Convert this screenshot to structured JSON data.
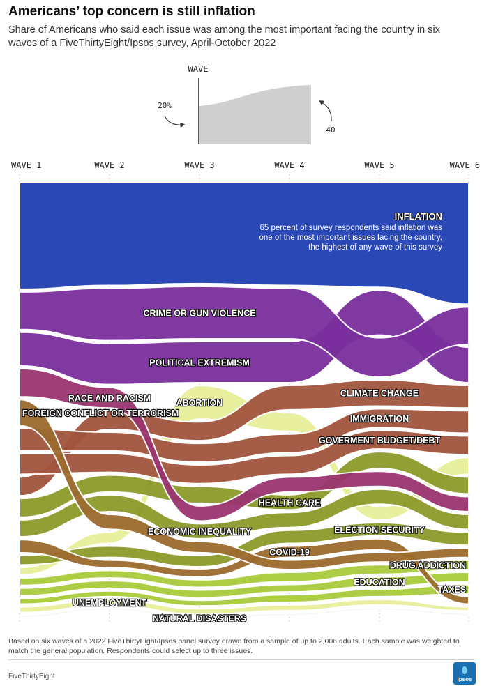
{
  "title": "Americans’ top concern is still inflation",
  "subtitle": "Share of Americans who said each issue was among the most important facing the country in six waves of a FiveThirtyEight/Ipsos survey, April-October 2022",
  "key": {
    "axis_label": "WAVE",
    "start_label": "20%",
    "end_label": "40"
  },
  "annotation": {
    "label": "INFLATION",
    "lines": [
      "65 percent of survey respondents said inflation was",
      "one of the most important issues facing the country,",
      "the highest of any wave of this survey"
    ]
  },
  "footnote": "Based on six waves of a 2022 FiveThirtyEight/Ipsos panel survey drawn from a sample of up to 2,006 adults. Each sample was weighted to match the general population. Respondents could select up to three issues.",
  "credit": "FiveThirtyEight",
  "logo_text": "Ipsos",
  "colors": {
    "inflation": "#1f3fb3",
    "purple": "#7b2f9e",
    "magenta": "#9a3470",
    "rust": "#a2553e",
    "brown": "#9c6b2e",
    "olive": "#8d9a2a",
    "lime": "#a9cc3a",
    "pale": "#e7ef9a"
  },
  "chart_data": {
    "type": "area",
    "subtype": "ranked bump/stream chart",
    "x": [
      "WAVE 1",
      "WAVE 2",
      "WAVE 3",
      "WAVE 4",
      "WAVE 5",
      "WAVE 6"
    ],
    "unit": "percent",
    "series": [
      {
        "name": "INFLATION",
        "color": "#1f3fb3",
        "values": [
          57,
          55,
          54,
          55,
          56,
          65
        ]
      },
      {
        "name": "CRIME OR GUN VIOLENCE",
        "color": "#7b2f9e",
        "values": [
          20,
          28,
          28,
          27,
          21,
          20
        ]
      },
      {
        "name": "POLITICAL EXTREMISM",
        "color": "#7b2f9e",
        "values": [
          18,
          22,
          22,
          22,
          24,
          19
        ]
      },
      {
        "name": "RACE AND RACISM",
        "color": "#9a3470",
        "values": [
          15,
          11,
          8,
          8,
          8,
          8
        ]
      },
      {
        "name": "FOREIGN CONFLICT OR TERRORISM",
        "color": "#9c6b2e",
        "values": [
          14,
          8,
          6,
          5,
          5,
          5
        ]
      },
      {
        "name": "ABORTION",
        "color": "#e7ef9a",
        "values": [
          4,
          6,
          18,
          10,
          7,
          9
        ]
      },
      {
        "name": "CLIMATE CHANGE",
        "color": "#a2553e",
        "values": [
          10,
          10,
          10,
          13,
          14,
          12
        ]
      },
      {
        "name": "IMMIGRATION",
        "color": "#a2553e",
        "values": [
          12,
          10,
          10,
          10,
          10,
          12
        ]
      },
      {
        "name": "GOVERMENT BUDGET/DEBT",
        "color": "#a2553e",
        "values": [
          11,
          10,
          10,
          10,
          10,
          10
        ]
      },
      {
        "name": "COVID-19",
        "color": "#9c6b2e",
        "values": [
          7,
          4,
          4,
          6,
          6,
          4
        ]
      },
      {
        "name": "HEALTH CARE",
        "color": "#8d9a2a",
        "values": [
          10,
          9,
          9,
          8,
          9,
          9
        ]
      },
      {
        "name": "ECONOMIC INEQUALITY",
        "color": "#8d9a2a",
        "values": [
          9,
          9,
          8,
          8,
          8,
          8
        ]
      },
      {
        "name": "ELECTION SECURITY",
        "color": "#8d9a2a",
        "values": [
          5,
          6,
          6,
          7,
          7,
          7
        ]
      },
      {
        "name": "DRUG ADDICTION",
        "color": "#a9cc3a",
        "values": [
          4,
          4,
          4,
          5,
          5,
          5
        ]
      },
      {
        "name": "EDUCATION",
        "color": "#a9cc3a",
        "values": [
          4,
          4,
          4,
          4,
          5,
          5
        ]
      },
      {
        "name": "TAXES",
        "color": "#a9cc3a",
        "values": [
          3,
          3,
          3,
          4,
          4,
          5
        ]
      },
      {
        "name": "UNEMPLOYMENT",
        "color": "#e7ef9a",
        "values": [
          3,
          3,
          3,
          3,
          3,
          2
        ]
      },
      {
        "name": "NATURAL DISASTERS",
        "color": "#eeeeee",
        "values": [
          1,
          1,
          1,
          1,
          1,
          1
        ]
      }
    ]
  }
}
